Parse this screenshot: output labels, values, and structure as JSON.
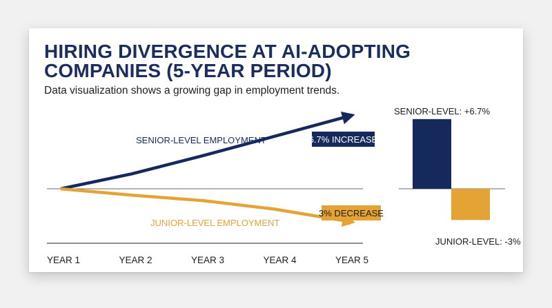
{
  "title": "HIRING DIVERGENCE AT AI-ADOPTING COMPANIES (5-YEAR PERIOD)",
  "subtitle": "Data visualization shows a growing gap in employment trends.",
  "colors": {
    "senior": "#15295c",
    "junior": "#e4a435",
    "axis": "#555555",
    "background": "#ffffff"
  },
  "chart_data": [
    {
      "type": "line",
      "x": [
        "YEAR 1",
        "YEAR 2",
        "YEAR 3",
        "YEAR 4",
        "YEAR 5"
      ],
      "ylim": [
        -4,
        8
      ],
      "series": [
        {
          "name": "SENIOR-LEVEL EMPLOYMENT",
          "values": [
            0,
            1.4,
            3.1,
            4.9,
            6.7
          ],
          "color": "#15295c",
          "annotation": "6.7% INCREASE"
        },
        {
          "name": "JUNIOR-LEVEL EMPLOYMENT",
          "values": [
            0,
            -0.6,
            -1.1,
            -1.9,
            -3
          ],
          "color": "#e4a435",
          "annotation": "3% DECREASE"
        }
      ],
      "grid": false,
      "legend": "inline labels"
    },
    {
      "type": "bar",
      "categories": [
        "SENIOR-LEVEL",
        "JUNIOR-LEVEL"
      ],
      "values": [
        6.7,
        -3
      ],
      "labels": [
        "SENIOR-LEVEL: +6.7%",
        "JUNIOR-LEVEL: -3%"
      ],
      "colors": [
        "#15295c",
        "#e4a435"
      ],
      "ylim": [
        -4,
        8
      ]
    }
  ]
}
